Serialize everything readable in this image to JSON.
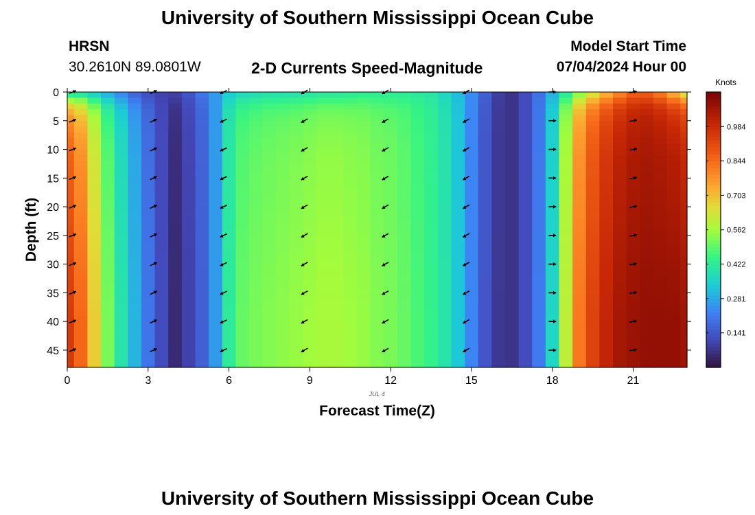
{
  "header": {
    "title": "University of Southern Mississippi Ocean Cube",
    "station": "HRSN",
    "coords": "30.2610N  89.0801W",
    "subtitle": "2-D Currents Speed-Magnitude",
    "model_start_label": "Model Start Time",
    "model_start_value": "07/04/2024 Hour 00"
  },
  "footer": {
    "title": "University of Southern Mississippi Ocean Cube"
  },
  "chart_data": {
    "type": "heatmap",
    "title": "2-D Currents Speed-Magnitude",
    "xlabel": "Forecast Time(Z)",
    "ylabel": "Depth (ft)",
    "x_sublabel": "JUL 4",
    "xlim": [
      0,
      23
    ],
    "ylim": [
      48,
      0
    ],
    "x_ticks": [
      0,
      3,
      6,
      9,
      12,
      15,
      18,
      21
    ],
    "x_tick_labels": [
      "0",
      "3",
      "6",
      "9",
      "12",
      "15",
      "18",
      "21"
    ],
    "y_ticks": [
      0,
      5,
      10,
      15,
      20,
      25,
      30,
      35,
      40,
      45
    ],
    "y_tick_labels": [
      "0",
      "5",
      "10",
      "15",
      "20",
      "25",
      "30",
      "35",
      "40",
      "45"
    ],
    "colorbar": {
      "label": "Knots",
      "range": [
        0.0,
        1.125
      ],
      "ticks": [
        0.141,
        0.281,
        0.422,
        0.562,
        0.703,
        0.844,
        0.984
      ],
      "tick_labels": [
        "0.141",
        "0.281",
        "0.422",
        "0.562",
        "0.703",
        "0.844",
        "0.984"
      ]
    },
    "hours": [
      0,
      0.5,
      1,
      1.5,
      2,
      2.5,
      3,
      3.5,
      4,
      4.5,
      5,
      5.5,
      6,
      6.5,
      7,
      7.5,
      8,
      8.5,
      9,
      9.5,
      10,
      10.5,
      11,
      11.5,
      12,
      12.5,
      13,
      13.5,
      14,
      14.5,
      15,
      15.5,
      16,
      16.5,
      17,
      17.5,
      18,
      18.5,
      19,
      19.5,
      20,
      20.5,
      21,
      21.5,
      22,
      22.5,
      23
    ],
    "speed_surface": [
      0.36,
      0.36,
      0.32,
      0.27,
      0.22,
      0.16,
      0.12,
      0.1,
      0.1,
      0.14,
      0.2,
      0.26,
      0.33,
      0.36,
      0.37,
      0.38,
      0.38,
      0.38,
      0.39,
      0.4,
      0.4,
      0.41,
      0.42,
      0.42,
      0.42,
      0.42,
      0.41,
      0.4,
      0.36,
      0.31,
      0.24,
      0.16,
      0.09,
      0.07,
      0.12,
      0.19,
      0.29,
      0.4,
      0.51,
      0.61,
      0.7,
      0.78,
      0.85,
      0.86,
      0.8,
      0.7,
      0.6
    ],
    "speed_bottom": [
      0.95,
      0.85,
      0.68,
      0.52,
      0.4,
      0.3,
      0.2,
      0.12,
      0.05,
      0.1,
      0.16,
      0.26,
      0.42,
      0.5,
      0.52,
      0.53,
      0.54,
      0.55,
      0.56,
      0.57,
      0.57,
      0.56,
      0.55,
      0.53,
      0.52,
      0.5,
      0.47,
      0.44,
      0.4,
      0.33,
      0.23,
      0.14,
      0.08,
      0.07,
      0.12,
      0.21,
      0.36,
      0.6,
      0.82,
      0.93,
      1.0,
      1.05,
      1.07,
      1.08,
      1.08,
      1.08,
      1.06
    ],
    "depth_profile_depths": [
      0,
      1,
      2,
      3,
      5,
      8,
      12,
      20,
      25,
      30,
      35,
      40,
      45,
      48
    ],
    "depth_profile_weights": [
      0.0,
      0.25,
      0.45,
      0.6,
      0.72,
      0.8,
      0.86,
      0.9,
      0.93,
      0.96,
      0.98,
      1.0,
      1.0,
      1.0
    ],
    "vectors": {
      "hours": [
        0.2,
        3.2,
        5.8,
        8.8,
        11.8,
        14.8,
        18.0,
        21.0
      ],
      "depths": [
        0,
        5,
        10,
        15,
        20,
        25,
        30,
        35,
        40,
        45
      ],
      "direction_deg": [
        22,
        25,
        205,
        210,
        210,
        210,
        0,
        10
      ]
    }
  }
}
